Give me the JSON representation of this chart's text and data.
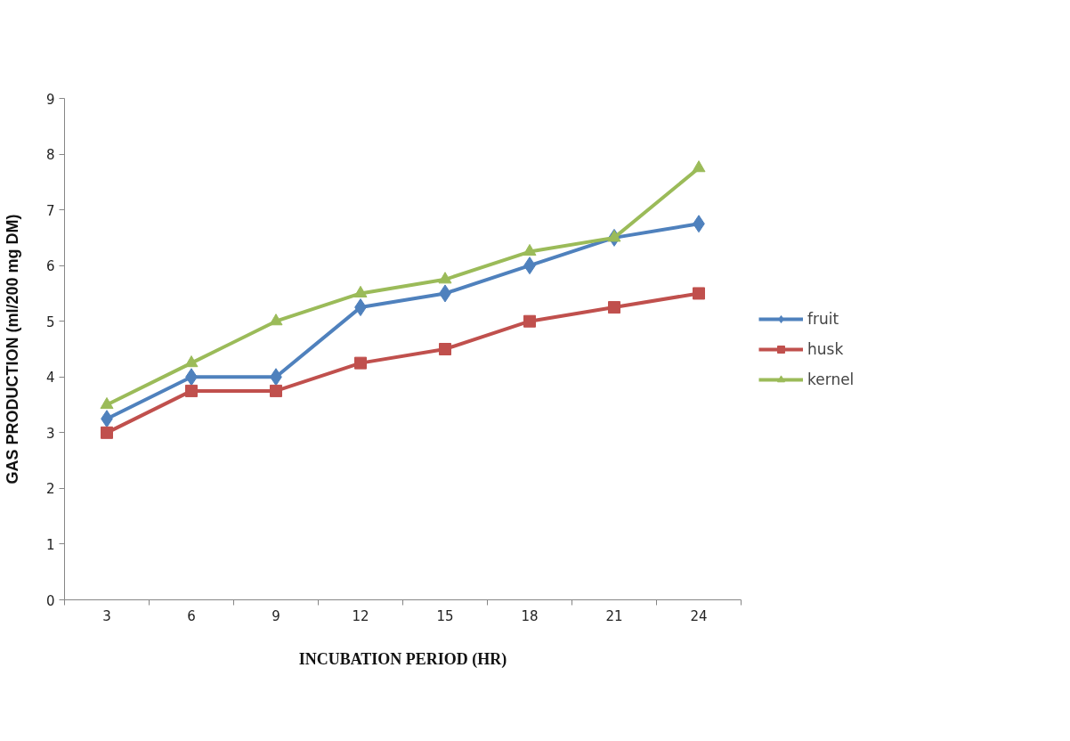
{
  "chart_data": {
    "type": "line",
    "xlabel": "INCUBATION PERIOD (HR)",
    "ylabel": "GAS PRODUCTION (ml/200 mg DM)",
    "categories": [
      "3",
      "6",
      "9",
      "12",
      "15",
      "18",
      "21",
      "24"
    ],
    "series": [
      {
        "name": "fruit",
        "color": "#4f81bd",
        "marker": "diamond",
        "values": [
          3.25,
          4,
          4,
          5.25,
          5.5,
          6,
          6.5,
          6.75
        ]
      },
      {
        "name": "husk",
        "color": "#c0504d",
        "marker": "square",
        "values": [
          3,
          3.75,
          3.75,
          4.25,
          4.5,
          5,
          5.25,
          5.5
        ]
      },
      {
        "name": "kernel",
        "color": "#9bbb59",
        "marker": "triangle",
        "values": [
          3.5,
          4.25,
          5,
          5.5,
          5.75,
          6.25,
          6.5,
          7.75
        ]
      }
    ],
    "ylim": [
      0,
      9
    ],
    "yticks": [
      0,
      1,
      2,
      3,
      4,
      5,
      6,
      7,
      8,
      9
    ],
    "grid": false,
    "legend": "right",
    "line_style": "solid"
  }
}
